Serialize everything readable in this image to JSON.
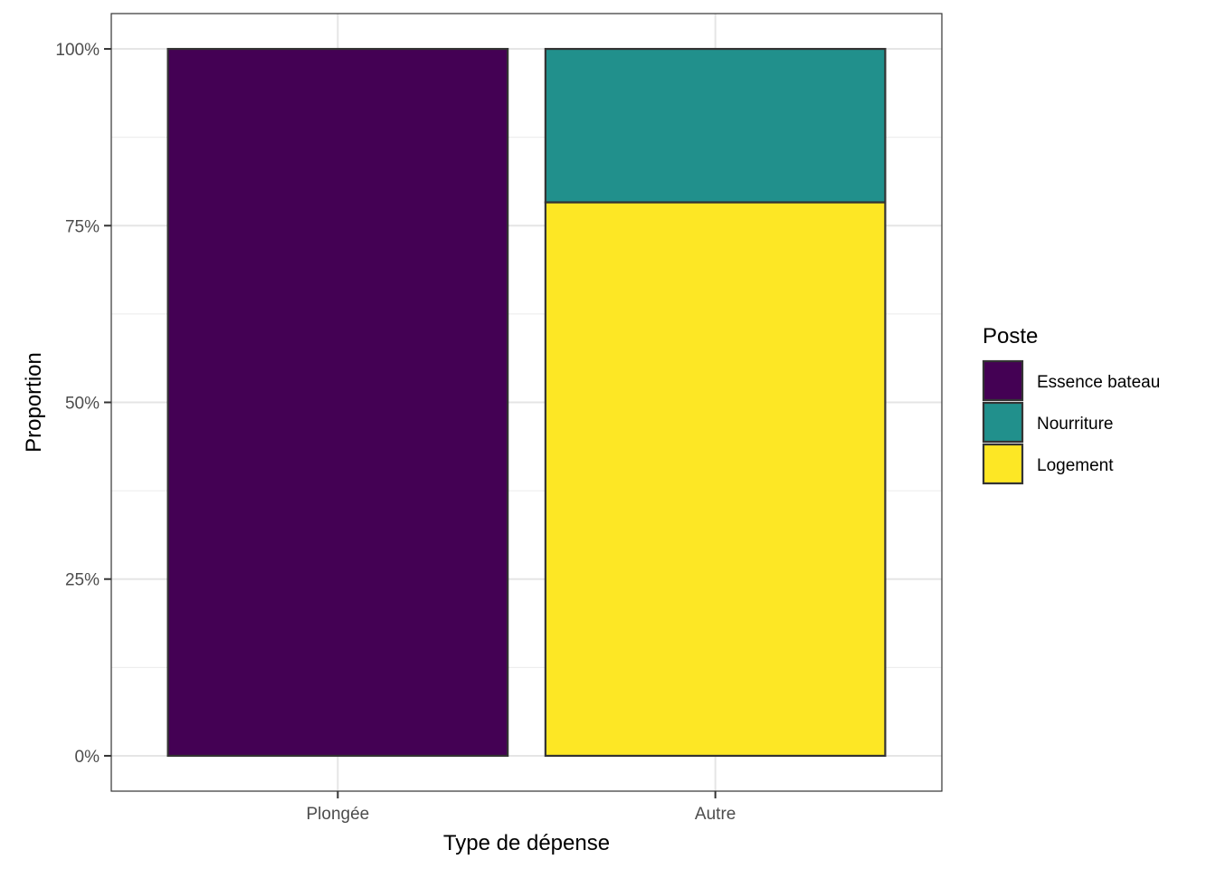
{
  "chart_data": {
    "type": "bar",
    "stacked": true,
    "categories": [
      "Plongée",
      "Autre"
    ],
    "series": [
      {
        "name": "Essence bateau",
        "values": [
          100,
          0
        ],
        "color": "#440154"
      },
      {
        "name": "Nourriture",
        "values": [
          0,
          21.7
        ],
        "color": "#21908C"
      },
      {
        "name": "Logement",
        "values": [
          0,
          78.3
        ],
        "color": "#FDE725"
      }
    ],
    "stack_order_bottom_to_top": [
      "Logement",
      "Nourriture",
      "Essence bateau"
    ],
    "xlabel": "Type de dépense",
    "ylabel": "Proportion",
    "ylim": [
      0,
      100
    ],
    "y_ticks": [
      0,
      25,
      50,
      75,
      100
    ],
    "y_tick_labels": [
      "0%",
      "25%",
      "50%",
      "75%",
      "100%"
    ],
    "grid": true,
    "legend": {
      "title": "Poste",
      "placement": "right",
      "entries": [
        "Essence bateau",
        "Nourriture",
        "Logement"
      ]
    }
  }
}
